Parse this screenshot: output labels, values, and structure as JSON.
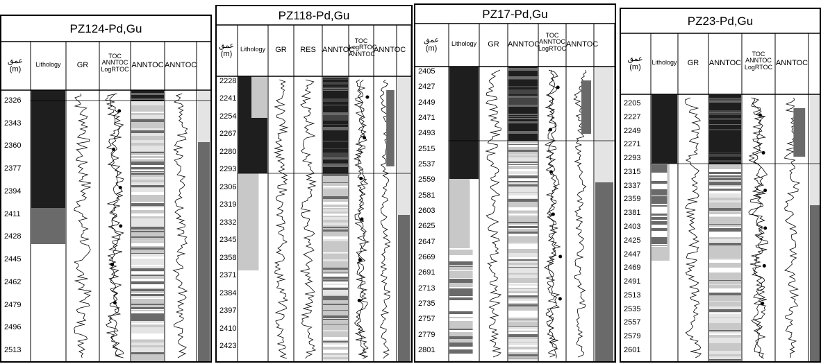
{
  "panels": [
    {
      "title": "PZ124-Pd,Gu",
      "depth_header": "عمق\n(m)",
      "tracks": [
        {
          "id": "lith",
          "label": "Lithology"
        },
        {
          "id": "gr",
          "label": "GR"
        },
        {
          "id": "toc",
          "label": "TOC\nANNTOC\nLogRTOC"
        },
        {
          "id": "ann1",
          "label": "ANNTOC"
        },
        {
          "id": "ann2",
          "label": "ANNTOC"
        }
      ],
      "depths": [
        "2326",
        "2343",
        "2360",
        "2377",
        "2394",
        "2411",
        "2428",
        "2445",
        "2462",
        "2479",
        "2496",
        "2513"
      ]
    },
    {
      "title": "PZ118-Pd,Gu",
      "depth_header": "عمق\n(m)",
      "tracks": [
        {
          "id": "lith",
          "label": "Lithology"
        },
        {
          "id": "gr",
          "label": "GR"
        },
        {
          "id": "res",
          "label": "RES"
        },
        {
          "id": "ann1",
          "label": "ANNTOC"
        },
        {
          "id": "toc",
          "label": "TOC\nLogRTOC\nANNTOC"
        },
        {
          "id": "ann2",
          "label": "ANNTOC"
        }
      ],
      "depths": [
        "2228",
        "2241",
        "2254",
        "2267",
        "2280",
        "2293",
        "2306",
        "2319",
        "2332",
        "2345",
        "2358",
        "2371",
        "2384",
        "2397",
        "2410",
        "2423"
      ]
    },
    {
      "title": "PZ17-Pd,Gu",
      "depth_header": "عمق\n(m)",
      "tracks": [
        {
          "id": "lith",
          "label": "Lithology"
        },
        {
          "id": "gr",
          "label": "GR"
        },
        {
          "id": "ann1",
          "label": "ANNTOC"
        },
        {
          "id": "toc",
          "label": "TOC\nANNTOC\nLogRTOC"
        },
        {
          "id": "ann2",
          "label": "ANNTOC"
        }
      ],
      "depths": [
        "2405",
        "2427",
        "2449",
        "2471",
        "2493",
        "2515",
        "2537",
        "2559",
        "2581",
        "2603",
        "2625",
        "2647",
        "2669",
        "2691",
        "2713",
        "2735",
        "2757",
        "2779",
        "2801"
      ]
    },
    {
      "title": "PZ23-Pd,Gu",
      "depth_header": "عمق\n(m)",
      "tracks": [
        {
          "id": "lith",
          "label": "Lithology"
        },
        {
          "id": "gr",
          "label": "GR"
        },
        {
          "id": "ann1",
          "label": "ANNTOC"
        },
        {
          "id": "toc",
          "label": "TOC\nANNTOC\nLogRTOC"
        },
        {
          "id": "ann2",
          "label": "ANNTOC"
        }
      ],
      "depths": [
        "2205",
        "2227",
        "2249",
        "2271",
        "2293",
        "2315",
        "2337",
        "2359",
        "2381",
        "2403",
        "2425",
        "2447",
        "2469",
        "2491",
        "2513",
        "2535",
        "2557",
        "2579",
        "2601"
      ]
    }
  ],
  "colors": {
    "dark": "#1e1e1e",
    "mid": "#6a6a6a",
    "light": "#c8c8c8",
    "pale": "#e4e4e4",
    "white": "#ffffff",
    "line": "#000000"
  }
}
